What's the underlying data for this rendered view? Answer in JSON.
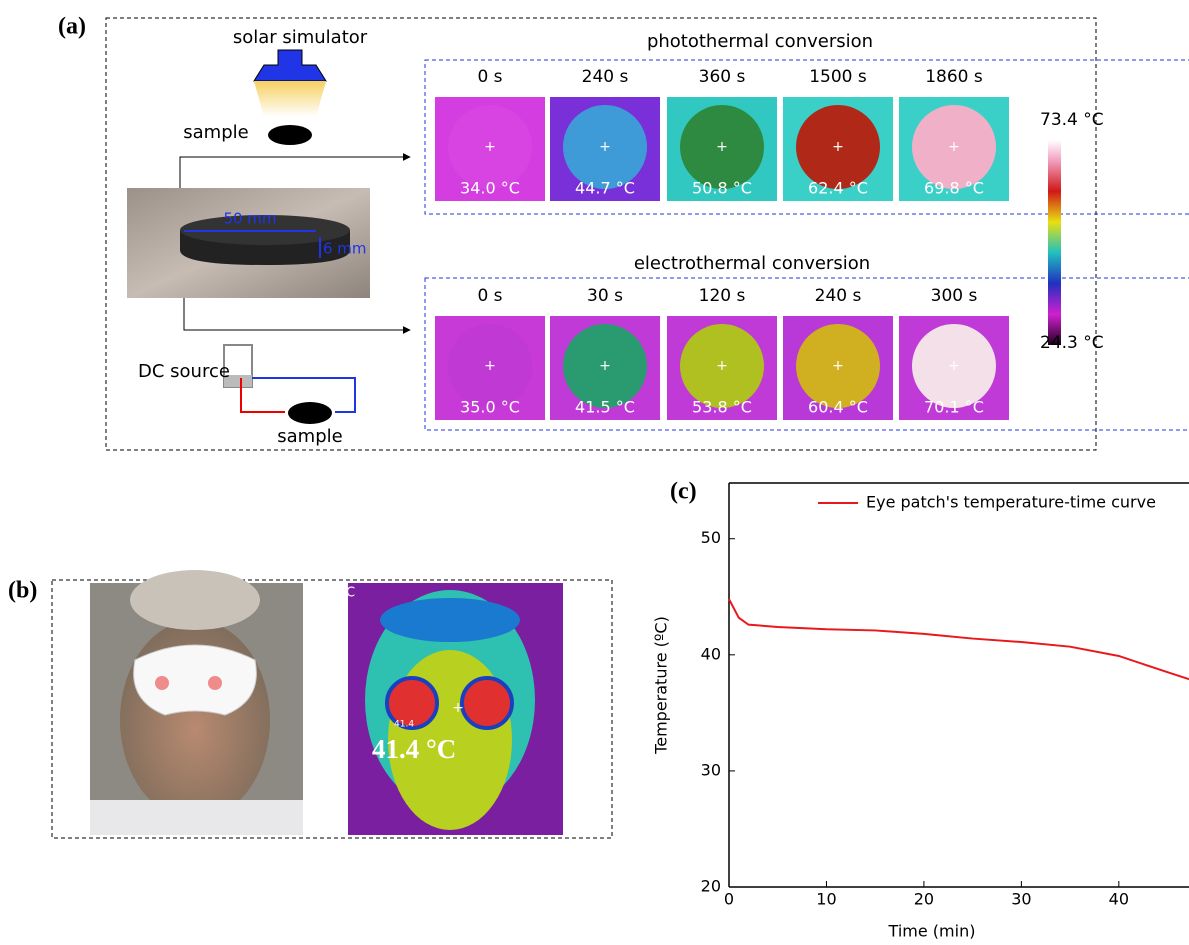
{
  "panel_a": {
    "label": "(a)",
    "solar_simulator": "solar simulator",
    "sample_top": "sample",
    "width_dim": "50 mm",
    "thickness_dim": "6 mm",
    "dc_source": "DC source",
    "sample_bottom": "sample",
    "photothermal": {
      "title": "photothermal conversion",
      "times": [
        "0 s",
        "240 s",
        "360 s",
        "1500 s",
        "1860 s"
      ],
      "temps": [
        "34.0 °C",
        "44.7 °C",
        "50.8 °C",
        "62.4 °C",
        "69.8 °C"
      ]
    },
    "electrothermal": {
      "title": "electrothermal conversion",
      "times": [
        "0 s",
        "30 s",
        "120 s",
        "240 s",
        "300 s"
      ],
      "temps": [
        "35.0 °C",
        "41.5 °C",
        "53.8 °C",
        "60.4 °C",
        "70.1 °C"
      ]
    },
    "colorbar_max": "73.4 °C",
    "colorbar_min": "24.3 °C"
  },
  "panel_b": {
    "label": "(b)",
    "thermal_corner": "C",
    "spot_value": "41.4",
    "temperature": "41.4 °C"
  },
  "chart_data": {
    "type": "line",
    "label": "(c)",
    "x_label": "Time (min)",
    "y_label": "Temperature (ºC)",
    "x": [
      0,
      1,
      2,
      5,
      10,
      15,
      20,
      25,
      30,
      35,
      40,
      45,
      47.2
    ],
    "series": [
      {
        "name": "Eye patch's temperature-time curve",
        "color": "#e8191c",
        "values": [
          44.8,
          43.2,
          42.6,
          42.4,
          42.2,
          42.1,
          41.8,
          41.4,
          41.1,
          40.7,
          39.9,
          38.5,
          37.9
        ]
      }
    ],
    "xlim": [
      0,
      47.2
    ],
    "ylim": [
      20,
      54.8
    ],
    "xticks": [
      0,
      10,
      20,
      30,
      40
    ],
    "yticks": [
      20,
      30,
      40,
      50
    ],
    "legend": "top-right"
  }
}
